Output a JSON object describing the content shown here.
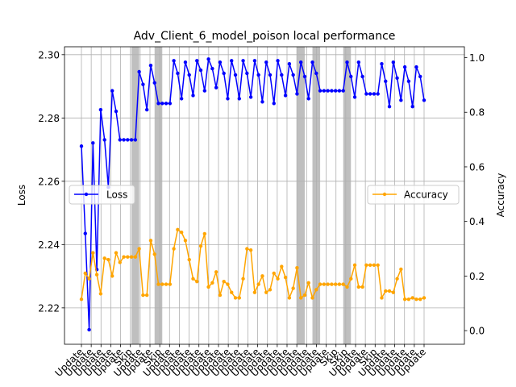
{
  "chart_data": {
    "type": "line",
    "title": "Adv_Client_6_model_poison local performance",
    "xlabel": "",
    "ylabel_left": "Loss",
    "ylabel_right": "Accuracy",
    "ylim_left": [
      2.2085,
      2.3025
    ],
    "ylim_right": [
      -0.05,
      1.04
    ],
    "yticks_left": [
      "2.22",
      "2.24",
      "2.26",
      "2.28",
      "2.30"
    ],
    "yticks_right": [
      "0.0",
      "0.2",
      "0.4",
      "0.6",
      "0.8",
      "1.0"
    ],
    "grid": true,
    "x_tick_labels": [
      "Update",
      "Update",
      "Update",
      "Update",
      "Update",
      "Skip",
      "Update",
      "Update",
      "Skip",
      "Update",
      "Update",
      "Update",
      "Update",
      "Update",
      "Update",
      "Update",
      "Update",
      "Update",
      "Update",
      "Update",
      "Update",
      "Update",
      "Update",
      "Update",
      "Update",
      "Update",
      "Skip",
      "Skip",
      "Update",
      "Update",
      "Skip",
      "Update",
      "Update",
      "Update",
      "Update",
      "Update"
    ],
    "skip_regions": [
      [
        13,
        15
      ],
      [
        19,
        21
      ],
      [
        56,
        58
      ],
      [
        60,
        62
      ],
      [
        68,
        70
      ]
    ],
    "series": [
      {
        "name": "Loss",
        "axis": "left",
        "color": "#0000ff",
        "legend_position": "center-left",
        "values": [
          2.2711,
          2.2435,
          2.2131,
          2.2721,
          2.2321,
          2.2826,
          2.2731,
          2.2581,
          2.2886,
          2.2821,
          2.2731,
          2.2731,
          2.2731,
          2.2731,
          2.2731,
          2.2946,
          2.2906,
          2.2826,
          2.2966,
          2.2911,
          2.2846,
          2.2846,
          2.2846,
          2.2846,
          2.2981,
          2.2941,
          2.2861,
          2.2976,
          2.2936,
          2.2871,
          2.2981,
          2.2951,
          2.2886,
          2.2986,
          2.2956,
          2.2896,
          2.2976,
          2.2941,
          2.2861,
          2.2981,
          2.2936,
          2.2861,
          2.2981,
          2.2941,
          2.2866,
          2.2981,
          2.2936,
          2.2851,
          2.2976,
          2.2936,
          2.2846,
          2.2981,
          2.2936,
          2.2871,
          2.2971,
          2.2936,
          2.2876,
          2.2976,
          2.2931,
          2.2861,
          2.2976,
          2.2941,
          2.2886,
          2.2886,
          2.2886,
          2.2886,
          2.2886,
          2.2886,
          2.2886,
          2.2976,
          2.2931,
          2.2866,
          2.2976,
          2.2931,
          2.2876,
          2.2876,
          2.2876,
          2.2876,
          2.2971,
          2.2916,
          2.2836,
          2.2976,
          2.2926,
          2.2856,
          2.2961,
          2.2916,
          2.2836,
          2.2961,
          2.2931,
          2.2856
        ]
      },
      {
        "name": "Accuracy",
        "axis": "right",
        "color": "#ffa500",
        "legend_position": "center-right",
        "values": [
          0.115,
          0.21,
          0.19,
          0.285,
          0.205,
          0.135,
          0.265,
          0.26,
          0.2,
          0.285,
          0.25,
          0.27,
          0.27,
          0.27,
          0.27,
          0.3,
          0.13,
          0.13,
          0.33,
          0.28,
          0.17,
          0.17,
          0.17,
          0.17,
          0.3,
          0.37,
          0.36,
          0.33,
          0.26,
          0.19,
          0.18,
          0.31,
          0.355,
          0.16,
          0.175,
          0.215,
          0.13,
          0.18,
          0.17,
          0.14,
          0.12,
          0.12,
          0.19,
          0.3,
          0.295,
          0.14,
          0.17,
          0.2,
          0.14,
          0.15,
          0.21,
          0.19,
          0.235,
          0.195,
          0.12,
          0.155,
          0.23,
          0.12,
          0.13,
          0.175,
          0.12,
          0.15,
          0.17,
          0.17,
          0.17,
          0.17,
          0.17,
          0.17,
          0.17,
          0.16,
          0.19,
          0.24,
          0.16,
          0.16,
          0.24,
          0.24,
          0.24,
          0.24,
          0.12,
          0.145,
          0.145,
          0.14,
          0.19,
          0.225,
          0.115,
          0.115,
          0.12,
          0.115,
          0.115,
          0.12
        ]
      }
    ]
  }
}
